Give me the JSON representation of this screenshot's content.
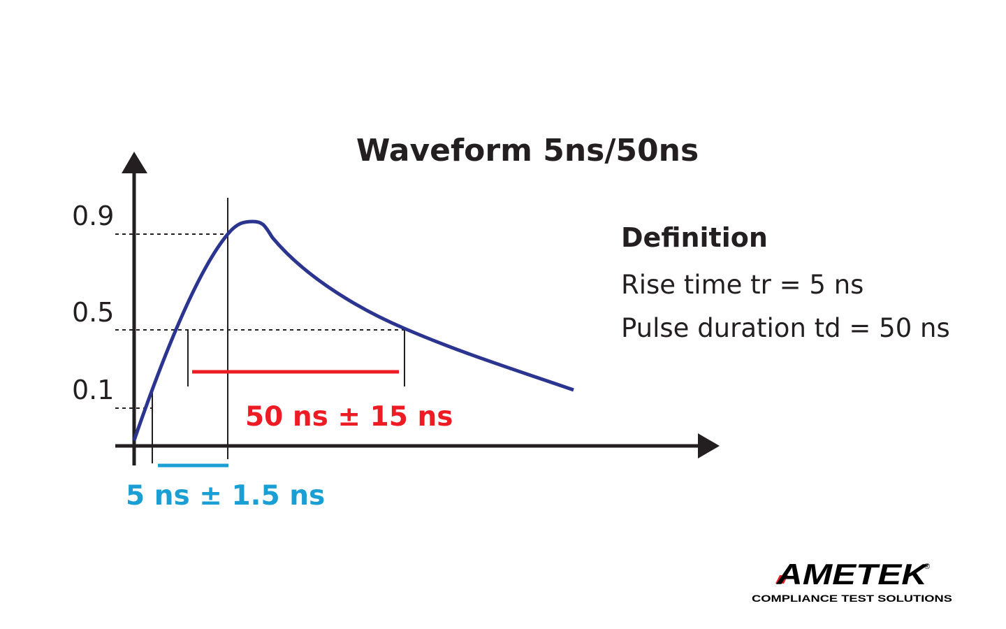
{
  "title": "Waveform 5ns/50ns",
  "y_tick_labels": [
    "0.9",
    "0.5",
    "0.1"
  ],
  "rise_tolerance_label": "5 ns ± 1.5 ns",
  "duration_tolerance_label": "50 ns ± 15 ns",
  "definition": {
    "heading": "Definition",
    "rise_time": "Rise time tr = 5 ns",
    "pulse_duration": "Pulse duration td = 50 ns"
  },
  "logo": {
    "brand": "AMETEK",
    "registered": "®",
    "tagline": "COMPLIANCE TEST SOLUTIONS"
  },
  "colors": {
    "waveform": "#2b3590",
    "duration_marker": "#ed1c24",
    "rise_marker": "#1a9fd4",
    "axis": "#231f20"
  }
}
